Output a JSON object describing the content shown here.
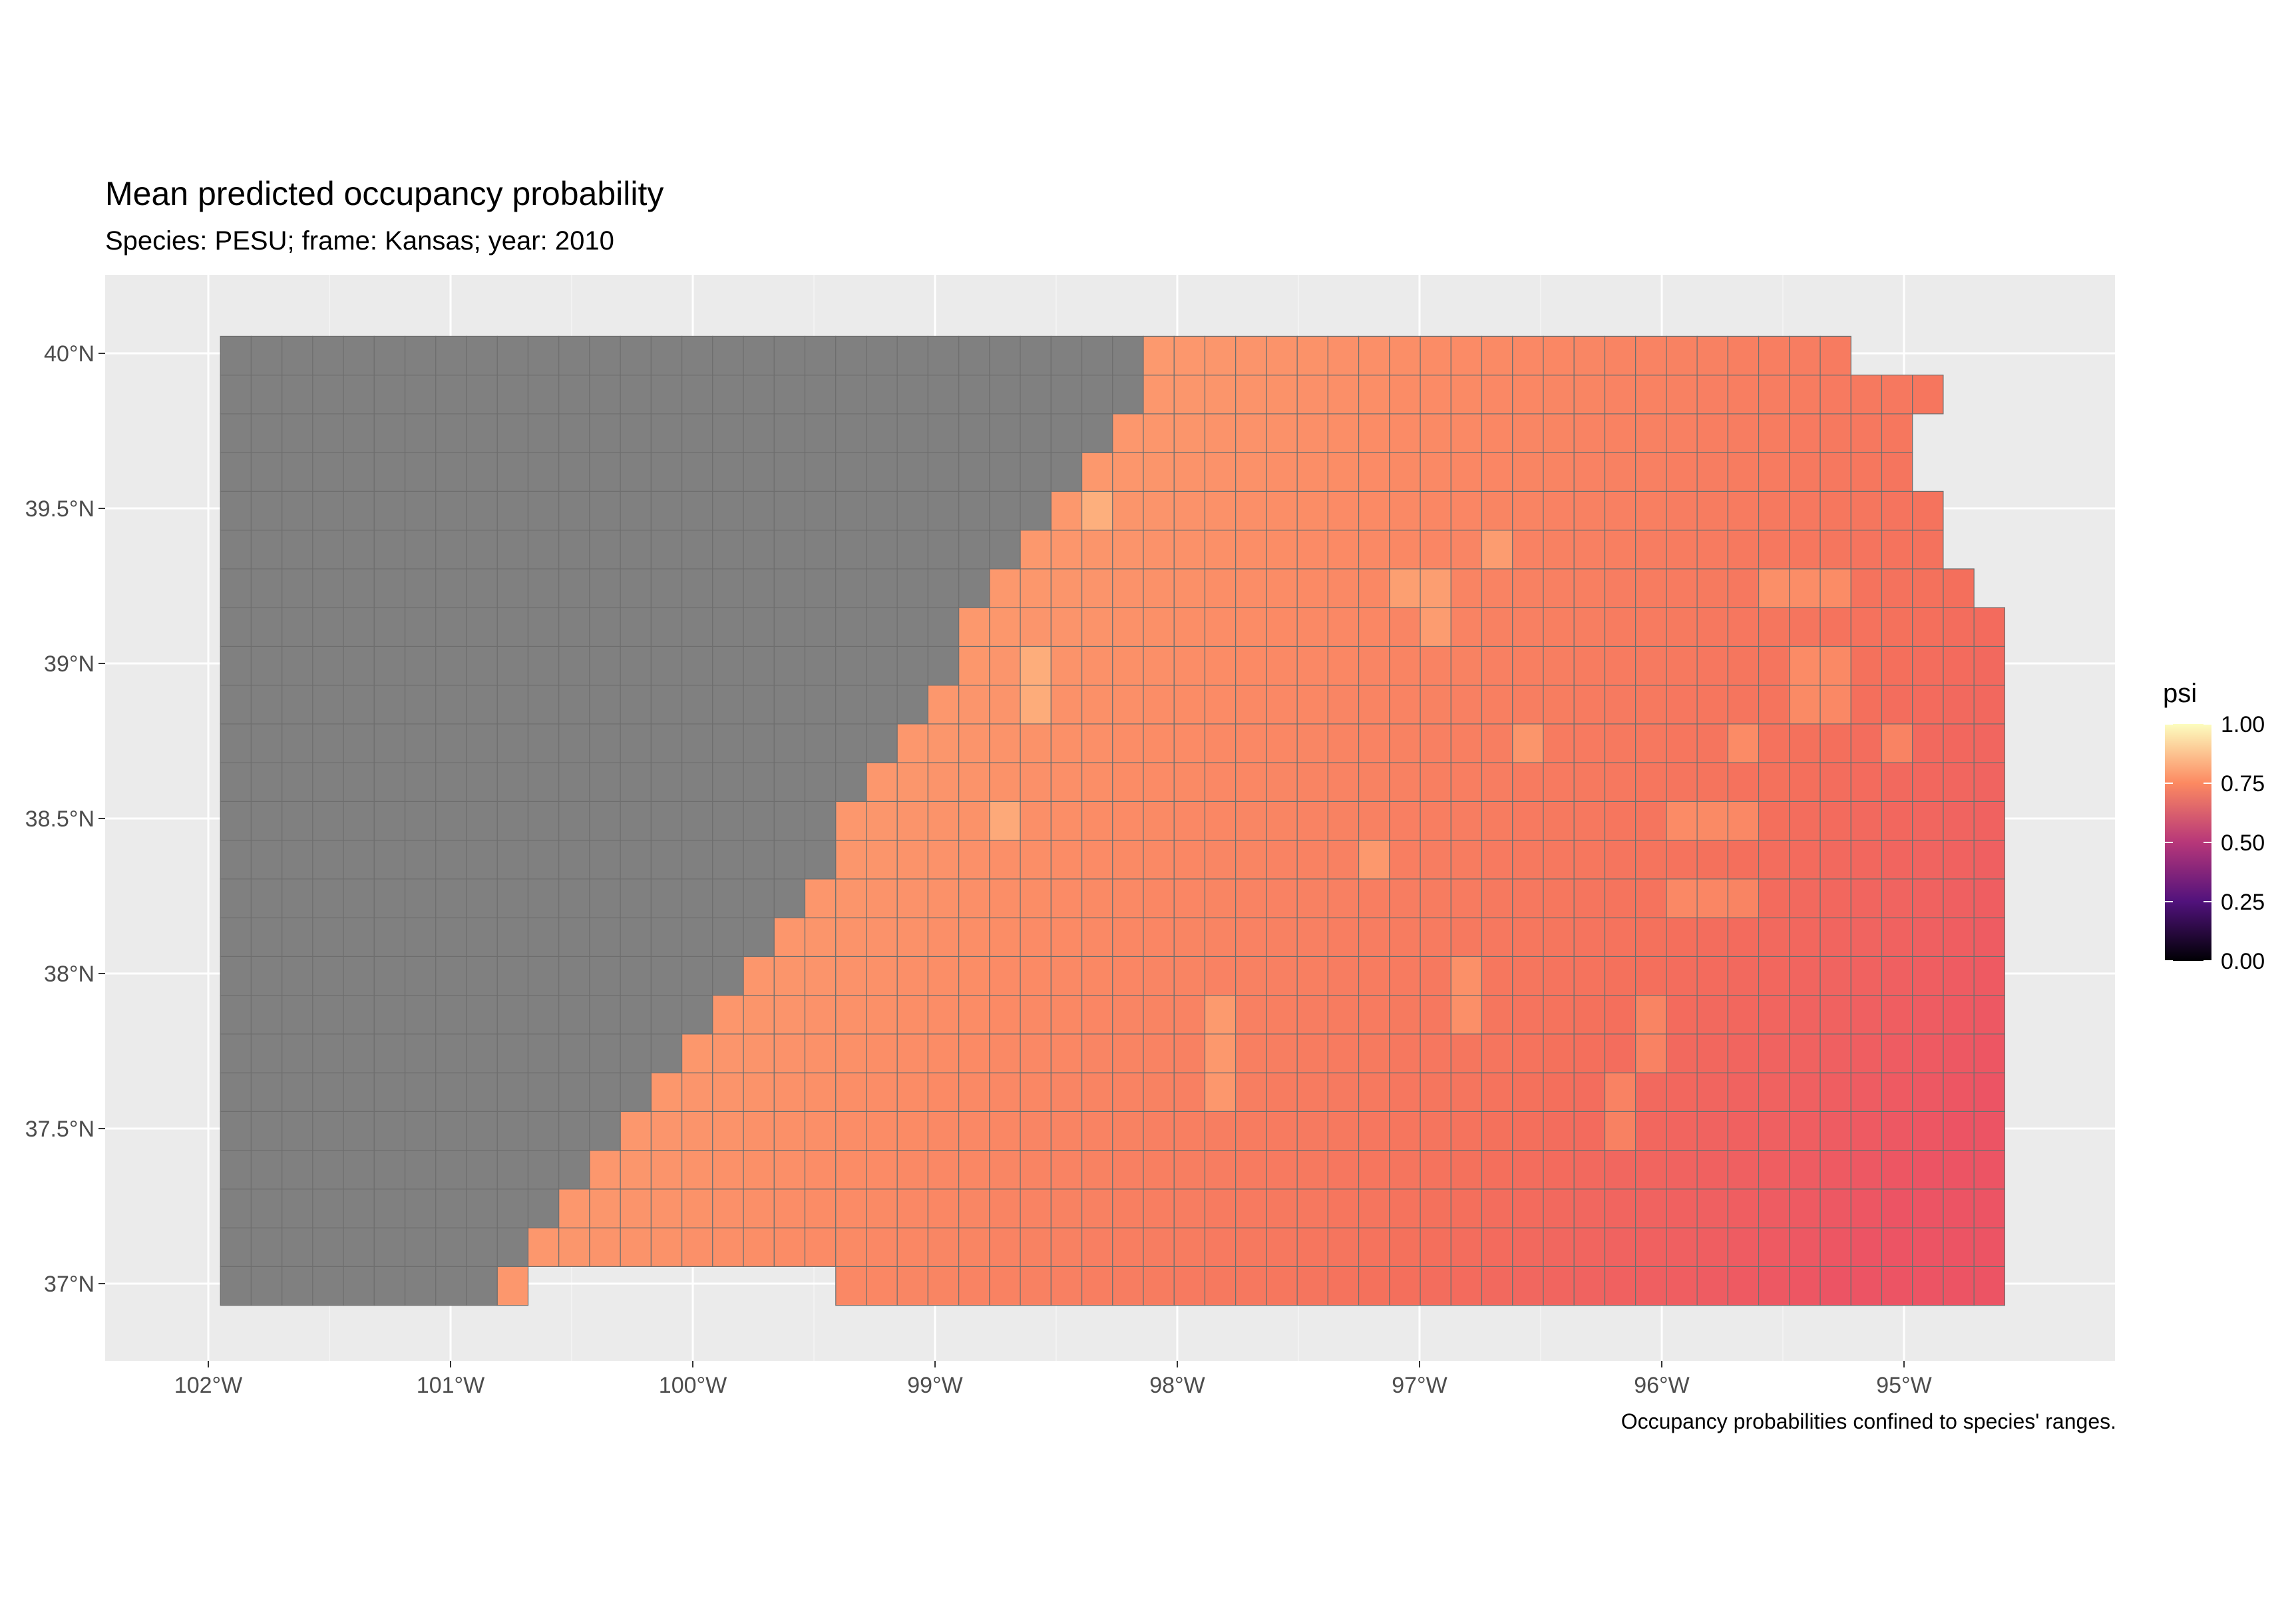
{
  "title": "Mean predicted occupancy probability",
  "subtitle": "Species: PESU; frame: Kansas; year: 2010",
  "caption": "Occupancy probabilities confined to species' ranges.",
  "legend": {
    "title": "psi",
    "ticks": [
      "1.00",
      "0.75",
      "0.50",
      "0.25",
      "0.00"
    ],
    "colors": [
      "#fcfdbf",
      "#fc8961",
      "#b73779",
      "#51127c",
      "#000004"
    ]
  },
  "colors": {
    "panel": "#ebebeb",
    "grid": "#ffffff",
    "no_data_cell": "#808080",
    "cell_border": "#6e6e6e"
  },
  "chart_data": {
    "type": "heatmap",
    "title": "Mean predicted occupancy probability",
    "subtitle": "Species: PESU; frame: Kansas; year: 2010",
    "x_ticks": [
      "102°W",
      "101°W",
      "100°W",
      "99°W",
      "98°W",
      "97°W",
      "96°W",
      "95°W"
    ],
    "y_ticks": [
      "40°N",
      "39.5°N",
      "39°N",
      "38.5°N",
      "38°N",
      "37.5°N",
      "37°N"
    ],
    "x_tick_values": [
      -102,
      -101,
      -100,
      -99,
      -98,
      -97,
      -96,
      -95
    ],
    "y_tick_values": [
      40,
      39.5,
      39,
      38.5,
      38,
      37.5,
      37
    ],
    "xlim": [
      -102.43,
      -94.2
    ],
    "ylim": [
      36.75,
      40.27
    ],
    "fill_variable": "psi",
    "fill_range": [
      0,
      1
    ],
    "grid": true,
    "legend_position": "right",
    "range_boundary_points": [
      [
        -98.2,
        40.05
      ],
      [
        -98.2,
        39.75
      ],
      [
        -98.4,
        39.65
      ],
      [
        -99.0,
        38.95
      ],
      [
        -99.5,
        38.3
      ],
      [
        -100.1,
        37.65
      ],
      [
        -100.8,
        37.0
      ]
    ],
    "psi_gradient": {
      "northwest": 0.8,
      "southeast": 0.68
    },
    "high_psi_cells": [
      [
        -98.38,
        39.46
      ],
      [
        -96.72,
        39.38
      ],
      [
        -96.72,
        39.32
      ],
      [
        -96.92,
        39.2
      ],
      [
        -97.05,
        39.2
      ],
      [
        -96.92,
        39.07
      ],
      [
        -95.48,
        39.2
      ],
      [
        -95.35,
        39.2
      ],
      [
        -95.35,
        38.95
      ],
      [
        -95.35,
        38.83
      ],
      [
        -98.58,
        38.92
      ],
      [
        -96.55,
        38.7
      ],
      [
        -95.62,
        38.7
      ],
      [
        -94.98,
        38.7
      ],
      [
        -98.68,
        38.46
      ],
      [
        -97.15,
        38.38
      ],
      [
        -95.85,
        38.5
      ],
      [
        -95.72,
        38.5
      ],
      [
        -95.85,
        38.24
      ],
      [
        -95.72,
        38.24
      ],
      [
        -96.8,
        37.93
      ],
      [
        -97.85,
        37.81
      ],
      [
        -97.85,
        37.69
      ],
      [
        -96.0,
        37.81
      ],
      [
        -96.15,
        37.56
      ]
    ]
  }
}
